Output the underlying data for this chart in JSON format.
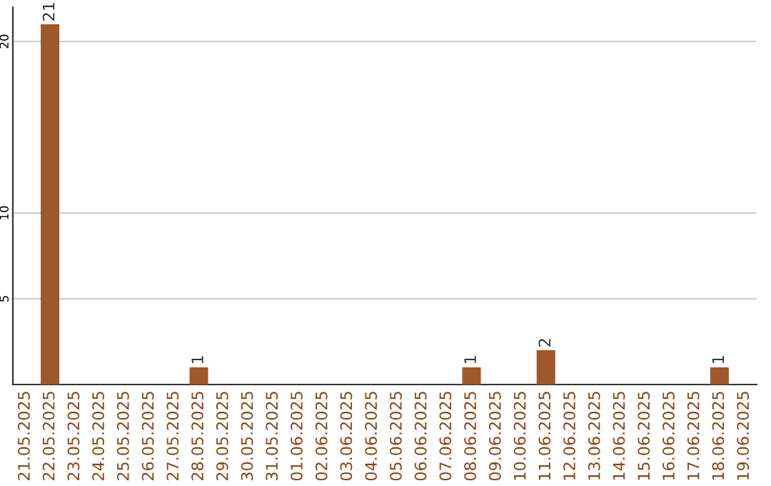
{
  "chart_data": {
    "type": "bar",
    "categories": [
      "21.05.2025",
      "22.05.2025",
      "23.05.2025",
      "24.05.2025",
      "25.05.2025",
      "26.05.2025",
      "27.05.2025",
      "28.05.2025",
      "29.05.2025",
      "30.05.2025",
      "31.05.2025",
      "01.06.2025",
      "02.06.2025",
      "03.06.2025",
      "04.06.2025",
      "05.06.2025",
      "06.06.2025",
      "07.06.2025",
      "08.06.2025",
      "09.06.2025",
      "10.06.2025",
      "11.06.2025",
      "12.06.2025",
      "13.06.2025",
      "14.06.2025",
      "15.06.2025",
      "16.06.2025",
      "17.06.2025",
      "18.06.2025",
      "19.06.2025"
    ],
    "values": [
      0,
      21,
      0,
      0,
      0,
      0,
      0,
      1,
      0,
      0,
      0,
      0,
      0,
      0,
      0,
      0,
      0,
      0,
      1,
      0,
      0,
      2,
      0,
      0,
      0,
      0,
      0,
      0,
      1,
      0
    ],
    "value_labels": [
      null,
      "21",
      null,
      null,
      null,
      null,
      null,
      "1",
      null,
      null,
      null,
      null,
      null,
      null,
      null,
      null,
      null,
      null,
      "1",
      null,
      null,
      "2",
      null,
      null,
      null,
      null,
      null,
      null,
      "1",
      null
    ],
    "color": "#a0572a",
    "ylim": [
      0,
      22
    ],
    "yticks": [
      5,
      10,
      20
    ],
    "grid": "y"
  }
}
